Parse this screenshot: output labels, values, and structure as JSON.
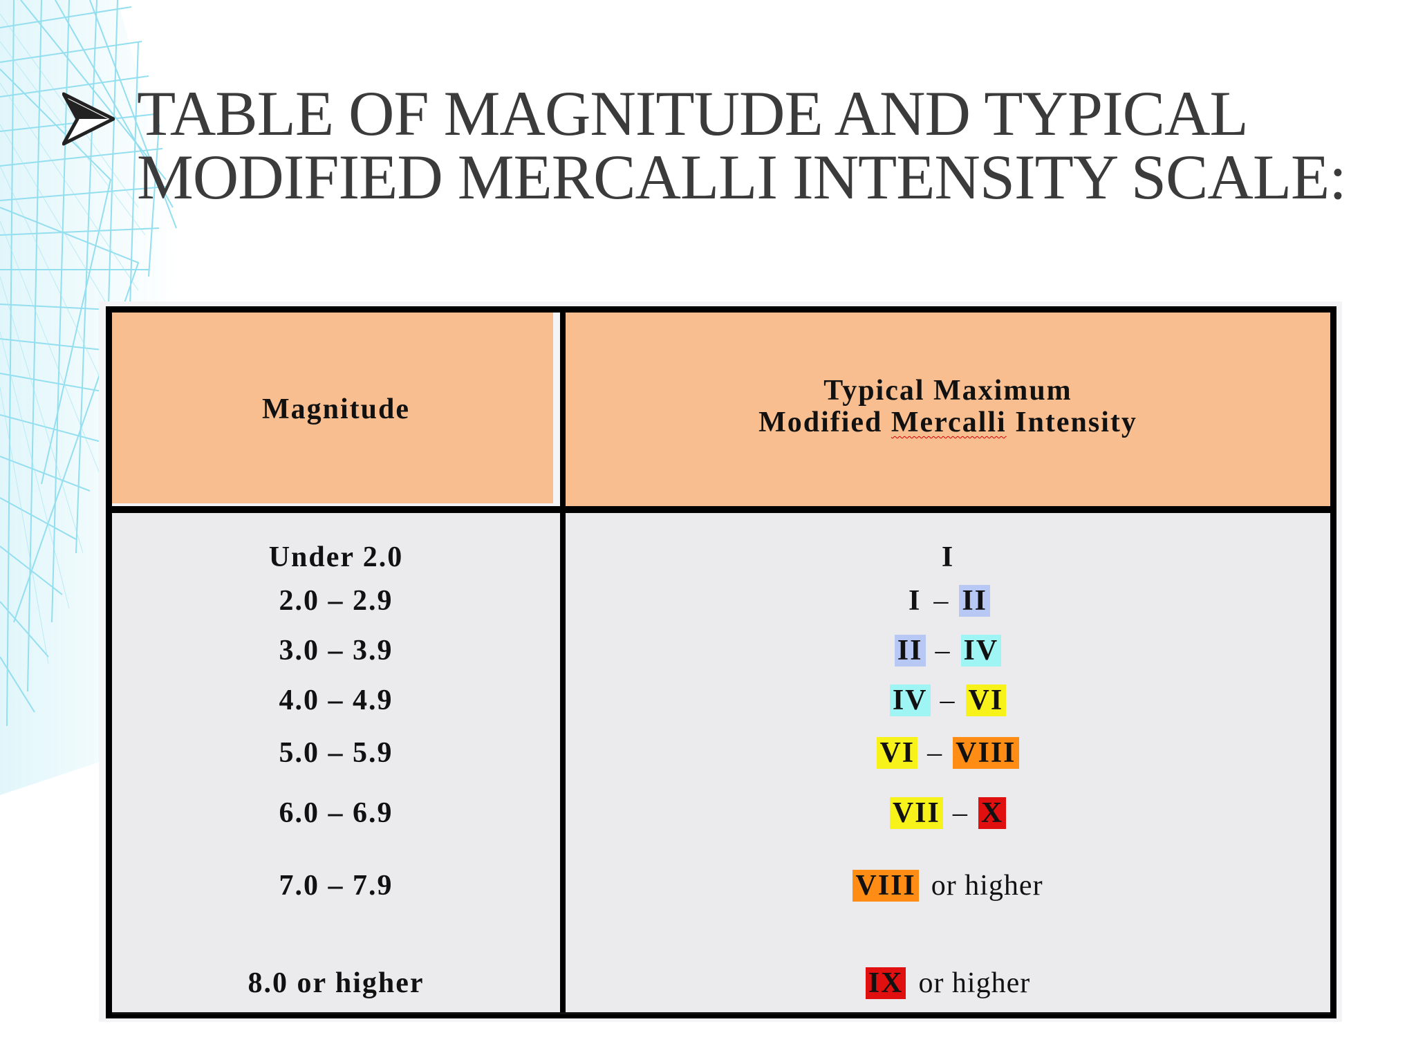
{
  "title": {
    "line1": "TABLE OF MAGNITUDE AND TYPICAL",
    "line2": "MODIFIED MERCALLI INTENSITY SCALE:"
  },
  "bullet_icon": "arrowhead-bullet-icon",
  "table": {
    "headers": {
      "magnitude": "Magnitude",
      "intensity_line1": "Typical Maximum",
      "intensity_line2_a": "Modified ",
      "intensity_line2_b": "Mercalli",
      "intensity_line2_c": " Intensity"
    },
    "rows": [
      {
        "magnitude": "Under 2.0",
        "from": "I",
        "to": "",
        "suffix": ""
      },
      {
        "magnitude": "2.0 – 2.9",
        "from": "I",
        "to": "II",
        "suffix": ""
      },
      {
        "magnitude": "3.0 – 3.9",
        "from": "II",
        "to": "IV",
        "suffix": ""
      },
      {
        "magnitude": "4.0 – 4.9",
        "from": "IV",
        "to": "VI",
        "suffix": ""
      },
      {
        "magnitude": "5.0 – 5.9",
        "from": "VI",
        "to": "VIII",
        "suffix": ""
      },
      {
        "magnitude": "6.0 – 6.9",
        "from": "VII",
        "to": "X",
        "suffix": ""
      },
      {
        "magnitude": "7.0 – 7.9",
        "from": "VIII",
        "to": "",
        "suffix": "or higher"
      },
      {
        "magnitude": "8.0 or higher",
        "from": "IX",
        "to": "",
        "suffix": "or higher"
      }
    ],
    "dash": "–"
  },
  "colors": {
    "header_bg": "#f9be8f",
    "row_bg": "#ebebee",
    "II": "#b8c8f4",
    "IV": "#9ff4f4",
    "VI": "#f7f21a",
    "VII": "#f7f21a",
    "VIII": "#ff8c14",
    "IX": "#e01010",
    "X": "#e01010"
  }
}
